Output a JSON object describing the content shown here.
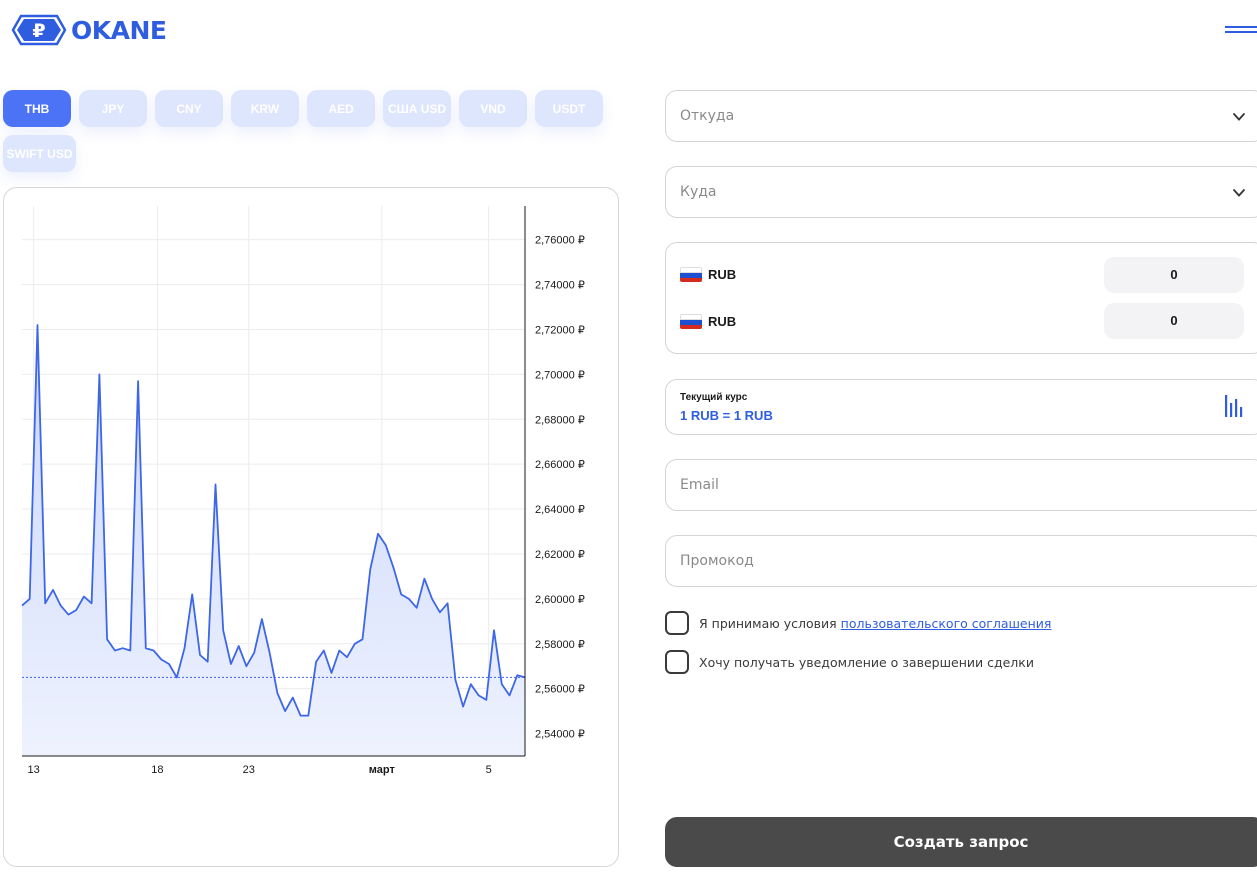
{
  "header": {
    "logo_text": "OKANE",
    "logo_symbol": "₽"
  },
  "tabs": [
    {
      "label": "THB",
      "active": true
    },
    {
      "label": "JPY"
    },
    {
      "label": "CNY"
    },
    {
      "label": "KRW"
    },
    {
      "label": "AED"
    },
    {
      "label": "США USD"
    },
    {
      "label": "VND"
    },
    {
      "label": "USDT"
    },
    {
      "label": "SWIFT USD"
    }
  ],
  "form": {
    "from_placeholder": "Откуда",
    "to_placeholder": "Куда",
    "currency_from": "RUB",
    "currency_to": "RUB",
    "amount_from": "0",
    "amount_to": "0",
    "rate_label": "Текущий курс",
    "rate_value": "1 RUB = 1 RUB",
    "email_placeholder": "Email",
    "promo_placeholder": "Промокод",
    "agree_text": "Я принимаю условия ",
    "agree_link": "пользовательского соглашения",
    "notify_text": "Хочу получать уведомление о завершении сделки",
    "submit_label": "Создать запрос"
  },
  "colors": {
    "accent": "#2f5de0",
    "tab_active": "#4c73f5",
    "tab_inactive": "#dde6fd",
    "button_dark": "#4a4a4a",
    "line": "#3d66e8",
    "area": "#d3defd"
  },
  "chart_data": {
    "type": "area",
    "currency_suffix": "₽",
    "ylim": [
      2.53,
      2.775
    ],
    "y_ticks": [
      "2,54000 ₽",
      "2,56000 ₽",
      "2,58000 ₽",
      "2,60000 ₽",
      "2,62000 ₽",
      "2,64000 ₽",
      "2,66000 ₽",
      "2,68000 ₽",
      "2,70000 ₽",
      "2,72000 ₽",
      "2,74000 ₽",
      "2,76000 ₽"
    ],
    "y_tick_values": [
      2.54,
      2.56,
      2.58,
      2.6,
      2.62,
      2.64,
      2.66,
      2.68,
      2.7,
      2.72,
      2.74,
      2.76
    ],
    "x_ticks": [
      {
        "label": "13",
        "bold": false
      },
      {
        "label": "18",
        "bold": false
      },
      {
        "label": "23",
        "bold": false
      },
      {
        "label": "март",
        "bold": true
      },
      {
        "label": "5",
        "bold": false
      }
    ],
    "current_value": 2.565,
    "series": [
      {
        "values": [
          2.597,
          2.6,
          2.722,
          2.598,
          2.604,
          2.597,
          2.593,
          2.595,
          2.601,
          2.598,
          2.7,
          2.582,
          2.577,
          2.578,
          2.577,
          2.697,
          2.578,
          2.577,
          2.573,
          2.571,
          2.565,
          2.578,
          2.602,
          2.575,
          2.572,
          2.651,
          2.586,
          2.571,
          2.579,
          2.57,
          2.576,
          2.591,
          2.576,
          2.558,
          2.55,
          2.556,
          2.548,
          2.548,
          2.572,
          2.577,
          2.567,
          2.577,
          2.574,
          2.58,
          2.582,
          2.613,
          2.629,
          2.624,
          2.614,
          2.602,
          2.6,
          2.596,
          2.609,
          2.6,
          2.594,
          2.598,
          2.564,
          2.552,
          2.562,
          2.557,
          2.555,
          2.586,
          2.562,
          2.557,
          2.566,
          2.565
        ]
      }
    ]
  }
}
